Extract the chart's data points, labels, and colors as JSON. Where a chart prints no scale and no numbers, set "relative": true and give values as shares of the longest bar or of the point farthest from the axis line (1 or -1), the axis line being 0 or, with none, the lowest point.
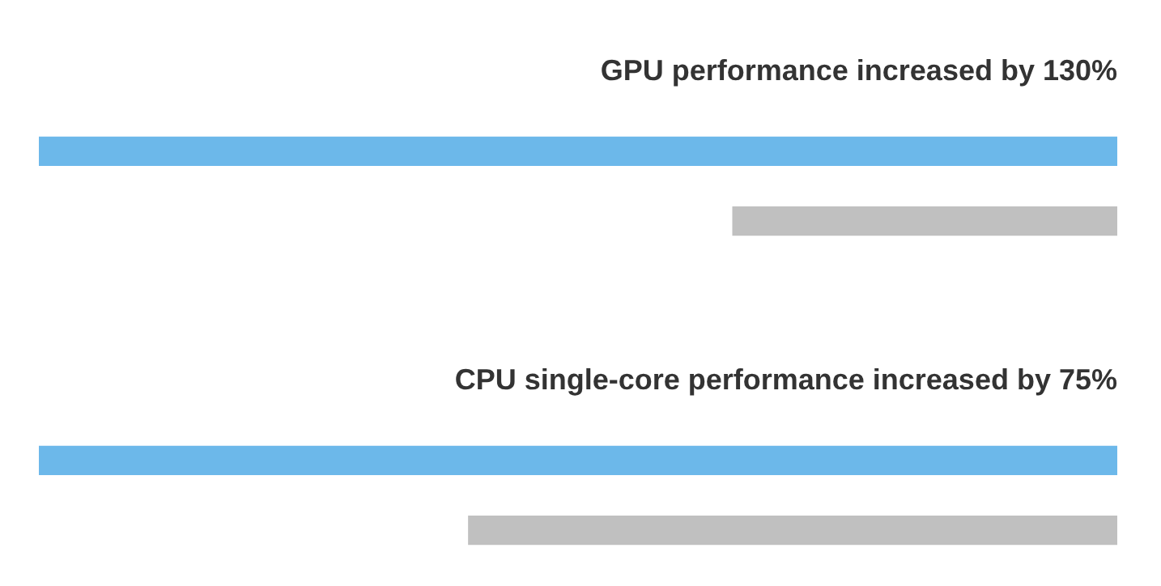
{
  "chart_data": {
    "type": "bar",
    "orientation": "horizontal",
    "relative": true,
    "categories": [
      "GPU performance increased by 130%",
      "CPU single-core performance increased by 75%"
    ],
    "series": [
      {
        "color": "#6cb8ea",
        "values": [
          1,
          1
        ]
      },
      {
        "color": "#c0c0c0",
        "values": [
          0.357,
          0.602
        ]
      }
    ],
    "legend": false
  }
}
